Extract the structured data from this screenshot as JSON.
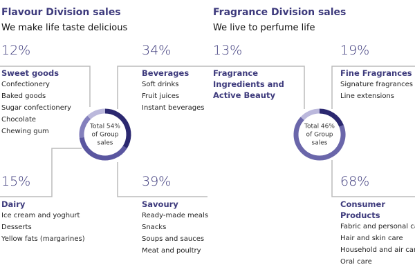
{
  "chart_data": [
    {
      "type": "donut",
      "title": "Flavour Division sales",
      "subtitle": "We make life taste delicious",
      "center_label": [
        "Total 54%",
        "of Group",
        "sales"
      ],
      "categories": [
        "Beverages",
        "Savoury",
        "Dairy",
        "Sweet goods"
      ],
      "values": [
        34,
        39,
        15,
        12
      ],
      "value_labels": [
        "34%",
        "39%",
        "15%",
        "12%"
      ],
      "colors": [
        "#2b2870",
        "#5a56a0",
        "#8480bd",
        "#bbb8dc"
      ],
      "items": [
        [
          "Soft drinks",
          "Fruit juices",
          "Instant beverages"
        ],
        [
          "Ready-made meals",
          "Snacks",
          "Soups and sauces",
          "Meat and poultry"
        ],
        [
          "Ice cream and yoghurt",
          "Desserts",
          "Yellow fats (margarines)"
        ],
        [
          "Confectionery",
          "Baked goods",
          "Sugar confectionery",
          "Chocolate",
          "Chewing gum"
        ]
      ]
    },
    {
      "type": "donut",
      "title": "Fragrance Division sales",
      "subtitle": "We live to perfume life",
      "center_label": [
        "Total 46%",
        "of Group",
        "sales"
      ],
      "categories": [
        "Fine Fragrances",
        "Consumer Products",
        "Fragrance Ingredients and Active Beauty"
      ],
      "values": [
        19,
        68,
        13
      ],
      "value_labels": [
        "19%",
        "68%",
        "13%"
      ],
      "colors": [
        "#2b2870",
        "#6a66aa",
        "#bbb8dc"
      ],
      "items": [
        [
          "Signature fragrances",
          "Line extensions"
        ],
        [
          "Fabric and personal care",
          "Hair and skin care",
          "Household and air care",
          "Oral care"
        ],
        []
      ]
    }
  ]
}
